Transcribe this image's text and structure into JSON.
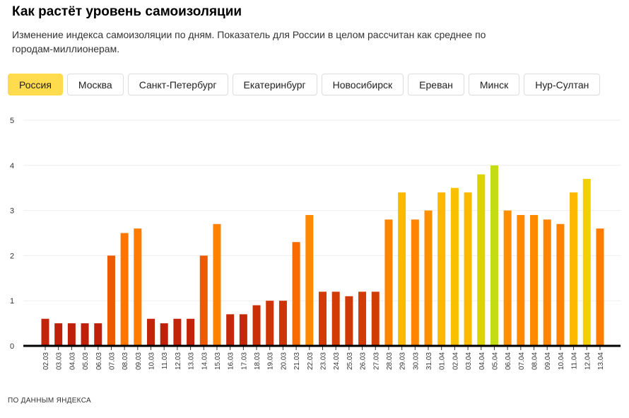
{
  "title": "Как растёт уровень самоизоляции",
  "subtitle": "Изменение индекса самоизоляции по дням. Показатель для России в целом рассчитан как среднее по городам-миллионерам.",
  "tabs": [
    "Россия",
    "Москва",
    "Санкт-Петербург",
    "Екатеринбург",
    "Новосибирск",
    "Ереван",
    "Минск",
    "Нур-Султан"
  ],
  "active_tab": 0,
  "accent": "#ffdb4d",
  "source": "ПО ДАННЫМ ЯНДЕКСА",
  "chart_data": {
    "type": "bar",
    "title": "Как растёт уровень самоизоляции",
    "xlabel": "",
    "ylabel": "",
    "ylim": [
      0,
      5
    ],
    "yticks": [
      "0",
      "1",
      "2",
      "3",
      "4",
      "5"
    ],
    "grid": true,
    "categories": [
      "02.03",
      "03.03",
      "04.03",
      "05.03",
      "06.03",
      "07.03",
      "08.03",
      "09.03",
      "10.03",
      "11.03",
      "12.03",
      "13.03",
      "14.03",
      "15.03",
      "16.03",
      "17.03",
      "18.03",
      "19.03",
      "20.03",
      "21.03",
      "22.03",
      "23.03",
      "24.03",
      "25.03",
      "26.03",
      "27.03",
      "28.03",
      "29.03",
      "30.03",
      "31.03",
      "01.04",
      "02.04",
      "03.04",
      "04.04",
      "05.04",
      "06.04",
      "07.04",
      "08.04",
      "09.04",
      "10.04",
      "11.04",
      "12.04",
      "13.04"
    ],
    "values": [
      0.6,
      0.5,
      0.5,
      0.5,
      0.5,
      2.0,
      2.5,
      2.6,
      0.6,
      0.5,
      0.6,
      0.6,
      2.0,
      2.7,
      0.7,
      0.7,
      0.9,
      1.0,
      1.0,
      2.3,
      2.9,
      1.2,
      1.2,
      1.1,
      1.2,
      1.2,
      2.8,
      3.4,
      2.8,
      3.0,
      3.4,
      3.5,
      3.4,
      3.8,
      4.0,
      3.0,
      2.9,
      2.9,
      2.8,
      2.7,
      3.4,
      3.7,
      2.6
    ],
    "color_scale": [
      [
        0.5,
        "#bf200a"
      ],
      [
        1.2,
        "#d23c04"
      ],
      [
        2.0,
        "#ee5a00"
      ],
      [
        2.6,
        "#ff7c00"
      ],
      [
        3.0,
        "#ff8e00"
      ],
      [
        3.4,
        "#fdb800"
      ],
      [
        3.7,
        "#f2d000"
      ],
      [
        3.8,
        "#dcd400"
      ],
      [
        4.0,
        "#c4dc14"
      ]
    ]
  }
}
